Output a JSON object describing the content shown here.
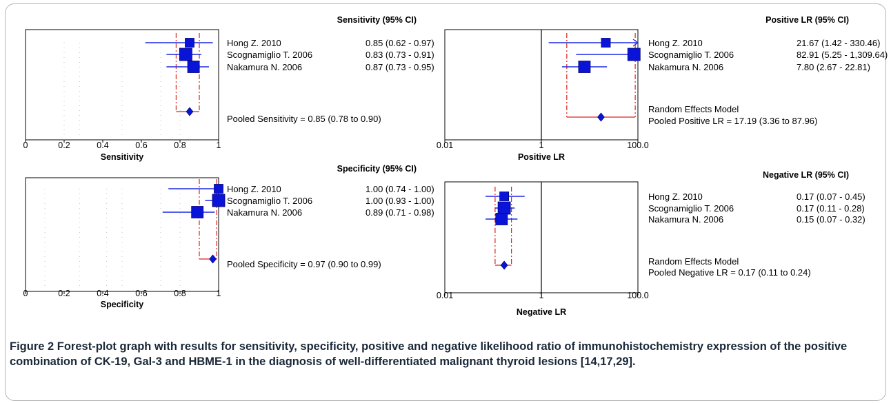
{
  "chart_data": [
    {
      "type": "forest",
      "xlabel": "Sensitivity",
      "header": "Sensitivity (95% CI)",
      "scale": "linear",
      "xlim": [
        0,
        1
      ],
      "ticks": [
        "0",
        "0.2",
        "0.4",
        "0.6",
        "0.8",
        "1"
      ],
      "studies": [
        {
          "name": "Hong Z. 2010",
          "estimate": 0.85,
          "lower": 0.62,
          "upper": 0.97,
          "ci_text": "0.85   (0.62 - 0.97)"
        },
        {
          "name": "Scognamiglio T. 2006",
          "estimate": 0.83,
          "lower": 0.73,
          "upper": 0.91,
          "ci_text": "0.83   (0.73 - 0.91)"
        },
        {
          "name": "Nakamura N. 2006",
          "estimate": 0.87,
          "lower": 0.73,
          "upper": 0.95,
          "ci_text": "0.87   (0.73 - 0.95)"
        }
      ],
      "pooled": {
        "estimate": 0.85,
        "lower": 0.78,
        "upper": 0.9,
        "label": "Pooled Sensitivity = 0.85 (0.78 to 0.90)"
      },
      "model_label": ""
    },
    {
      "type": "forest",
      "xlabel": "Positive LR",
      "header": "Positive LR (95% CI)",
      "scale": "log",
      "xlim": [
        0.01,
        100
      ],
      "ticks": [
        "0.01",
        "1",
        "100.0"
      ],
      "studies": [
        {
          "name": "Hong Z. 2010",
          "estimate": 21.67,
          "lower": 1.42,
          "upper": 330.46,
          "ci_text": "21.67   (1.42 - 330.46)"
        },
        {
          "name": "Scognamiglio T. 2006",
          "estimate": 82.91,
          "lower": 5.25,
          "upper": 1309.64,
          "ci_text": "82.91   (5.25 - 1,309.64)"
        },
        {
          "name": "Nakamura N. 2006",
          "estimate": 7.8,
          "lower": 2.67,
          "upper": 22.81,
          "ci_text": "7.80   (2.67 - 22.81)"
        }
      ],
      "pooled": {
        "estimate": 17.19,
        "lower": 3.36,
        "upper": 87.96,
        "label": "Pooled Positive LR = 17.19 (3.36 to 87.96)"
      },
      "model_label": "Random Effects Model"
    },
    {
      "type": "forest",
      "xlabel": "Specificity",
      "header": "Specificity (95% CI)",
      "scale": "linear",
      "xlim": [
        0,
        1
      ],
      "ticks": [
        "0",
        "0.2",
        "0.4",
        "0.6",
        "0.8",
        "1"
      ],
      "studies": [
        {
          "name": "Hong Z. 2010",
          "estimate": 1.0,
          "lower": 0.74,
          "upper": 1.0,
          "ci_text": "1.00   (0.74 - 1.00)"
        },
        {
          "name": "Scognamiglio T. 2006",
          "estimate": 1.0,
          "lower": 0.93,
          "upper": 1.0,
          "ci_text": "1.00   (0.93 - 1.00)"
        },
        {
          "name": "Nakamura N. 2006",
          "estimate": 0.89,
          "lower": 0.71,
          "upper": 0.98,
          "ci_text": "0.89   (0.71 - 0.98)"
        }
      ],
      "pooled": {
        "estimate": 0.97,
        "lower": 0.9,
        "upper": 0.99,
        "label": "Pooled Specificity = 0.97 (0.90 to 0.99)"
      },
      "model_label": ""
    },
    {
      "type": "forest",
      "xlabel": "Negative LR",
      "header": "Negative LR (95% CI)",
      "scale": "log",
      "xlim": [
        0.01,
        100
      ],
      "ticks": [
        "0.01",
        "1",
        "100.0"
      ],
      "studies": [
        {
          "name": "Hong Z. 2010",
          "estimate": 0.17,
          "lower": 0.07,
          "upper": 0.45,
          "ci_text": "0.17   (0.07 - 0.45)"
        },
        {
          "name": "Scognamiglio T. 2006",
          "estimate": 0.17,
          "lower": 0.11,
          "upper": 0.28,
          "ci_text": "0.17   (0.11 - 0.28)"
        },
        {
          "name": "Nakamura N. 2006",
          "estimate": 0.15,
          "lower": 0.07,
          "upper": 0.32,
          "ci_text": "0.15   (0.07 - 0.32)"
        }
      ],
      "pooled": {
        "estimate": 0.17,
        "lower": 0.11,
        "upper": 0.24,
        "label": "Pooled Negative LR = 0.17 (0.11 to 0.24)"
      },
      "model_label": "Random Effects Model"
    }
  ],
  "colors": {
    "marker": "#0a14d8",
    "ci_line": "#1a28e6",
    "pooled_ci": "#e0201a",
    "axis": "#000000",
    "grid": "#c4c4c4"
  },
  "caption": {
    "label": "Figure 2",
    "text": " Forest-plot graph with results for sensitivity, specificity, positive and negative likelihood ratio of immunohistochemistry expression of the positive combination of CK-19, Gal-3 and HBME-1 in the diagnosis of well-differentiated malignant thyroid lesions [14,17,29]."
  }
}
